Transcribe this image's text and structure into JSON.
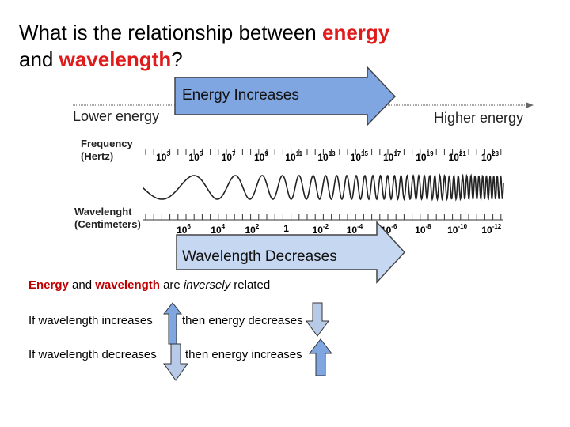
{
  "title": {
    "prefix": "What is the relationship between ",
    "energy": "energy",
    "line2_prefix": "and ",
    "wavelength": "wavelength",
    "suffix": "?"
  },
  "arrows": {
    "top_label": "Energy Increases",
    "bottom_label": "Wavelength Decreases",
    "fill_color": "#7fa6e0"
  },
  "spectrum": {
    "lower_energy": "Lower energy",
    "higher_energy": "Higher energy",
    "frequency_label_1": "Frequency",
    "frequency_label_2": "(Hertz)",
    "wavelength_label_1": "Wavelenght",
    "wavelength_label_2": "(Centimeters)",
    "frequency_ticks": [
      {
        "base": "10",
        "exp": "3"
      },
      {
        "base": "10",
        "exp": "5"
      },
      {
        "base": "10",
        "exp": "7"
      },
      {
        "base": "10",
        "exp": "9"
      },
      {
        "base": "10",
        "exp": "11"
      },
      {
        "base": "10",
        "exp": "13"
      },
      {
        "base": "10",
        "exp": "15"
      },
      {
        "base": "10",
        "exp": "17"
      },
      {
        "base": "10",
        "exp": "19"
      },
      {
        "base": "10",
        "exp": "21"
      },
      {
        "base": "10",
        "exp": "23"
      }
    ],
    "wavelength_ticks": [
      {
        "base": "10",
        "exp": "6"
      },
      {
        "base": "10",
        "exp": "4"
      },
      {
        "base": "10",
        "exp": "2"
      },
      {
        "base": "1",
        "exp": ""
      },
      {
        "base": "10",
        "exp": "-2"
      },
      {
        "base": "10",
        "exp": "-4"
      },
      {
        "base": "10",
        "exp": "-6"
      },
      {
        "base": "10",
        "exp": "-8"
      },
      {
        "base": "10",
        "exp": "-10"
      },
      {
        "base": "10",
        "exp": "-12"
      }
    ]
  },
  "relation": {
    "w_energy": "Energy",
    "w_and": " and ",
    "w_wavelength": "wavelength",
    "w_are": " are ",
    "w_inversely": "inversely",
    "w_related": " related"
  },
  "rows": [
    {
      "left": "If wavelength increases",
      "right": "then energy decreases"
    },
    {
      "left": "If wavelength decreases",
      "right": "then energy increases"
    }
  ]
}
